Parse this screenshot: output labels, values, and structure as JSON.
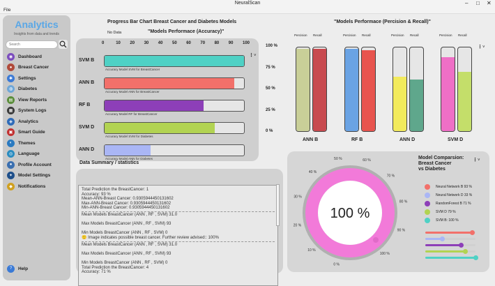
{
  "window": {
    "title": "NeuralScan",
    "menu_file": "File",
    "minimize": "–",
    "maximize": "□",
    "close": "✕"
  },
  "sidebar": {
    "title": "Analytics",
    "subtitle": "Insights from data and trends",
    "search_placeholder": "Search",
    "items": [
      {
        "label": "Dashboard",
        "color": "#7c4dbe",
        "glyph": "◉"
      },
      {
        "label": "Breast Cancer",
        "color": "#b04a3a",
        "glyph": "●"
      },
      {
        "label": "Settings",
        "color": "#3b7ad6",
        "glyph": "✱"
      },
      {
        "label": "Diabetes",
        "color": "#6fa7d8",
        "glyph": "◍"
      },
      {
        "label": "View Reports",
        "color": "#5a8d3a",
        "glyph": "▤"
      },
      {
        "label": "System Logs",
        "color": "#3a3a3a",
        "glyph": "▦"
      },
      {
        "label": "Analytics",
        "color": "#2e6bb8",
        "glyph": "◈"
      },
      {
        "label": "Smart Guide",
        "color": "#c23030",
        "glyph": "▣"
      },
      {
        "label": "Themes",
        "color": "#2a7ac0",
        "glyph": "◐"
      },
      {
        "label": "Language",
        "color": "#2a8cc0",
        "glyph": "◎"
      },
      {
        "label": "Profile Account",
        "color": "#3a6fb0",
        "glyph": "●"
      },
      {
        "label": "Model Settings",
        "color": "#1e4f8a",
        "glyph": "✦"
      },
      {
        "label": "Notifications",
        "color": "#d0a020",
        "glyph": "◆"
      }
    ],
    "help": "Help"
  },
  "accuracy_panel": {
    "title": "Progress Bar Chart Breast Cancer  and Diabetes Models",
    "no_data": "No Data",
    "subtitle": "\"Models Performace (Accuracy)\"",
    "menu": "⋮",
    "chevron": "˅",
    "ticks": [
      "0",
      "10",
      "20",
      "30",
      "40",
      "50",
      "60",
      "70",
      "80",
      "90",
      "100"
    ]
  },
  "recall_panel": {
    "title": "\"Models Performace (Percision & Recall)\"",
    "col_precision": "Percision",
    "col_recall": "Recall",
    "menu": "⋮",
    "chevron": "˅",
    "y_ticks": [
      "100 %",
      "75 %",
      "50 %",
      "25 %",
      "0 %"
    ]
  },
  "chart_data": [
    {
      "type": "bar",
      "orientation": "horizontal",
      "title": "\"Models Performace (Accuracy)\"",
      "xlim": [
        0,
        100
      ],
      "categories": [
        "SVM B",
        "ANN B",
        "RF B",
        "SVM D",
        "ANN D"
      ],
      "values": [
        100,
        93,
        71,
        79,
        33
      ],
      "colors": [
        "#4fd1c5",
        "#f2706a",
        "#8d3fb8",
        "#b2d352",
        "#aab6f5"
      ],
      "captions": [
        "Accuracy Model SVM for BreastCancer",
        "Accuracy Model ANN for BreastCancer",
        "Accuracy Model RF for BreastCancer",
        "Accuracy Model SVM for Diabetes",
        "Accuracy Model ANN for Diabetes"
      ]
    },
    {
      "type": "bar",
      "orientation": "vertical",
      "title": "\"Models Performace (Percision & Recall)\"",
      "ylim": [
        0,
        100
      ],
      "categories": [
        "ANN B",
        "RF B",
        "ANN D",
        "SVM D"
      ],
      "series": [
        {
          "name": "Percision",
          "values": [
            98,
            98,
            65,
            88
          ],
          "colors": [
            "#c9cf98",
            "#6aa3e4",
            "#f2ea5c",
            "#ef6fc6"
          ]
        },
        {
          "name": "Recall",
          "values": [
            98,
            97,
            62,
            71
          ],
          "colors": [
            "#c84a4f",
            "#e8544e",
            "#5fa78c",
            "#c4de6a"
          ]
        }
      ]
    },
    {
      "type": "pie",
      "title": "Model Comparsion: Breast Cancer vs Diabetes",
      "center_label": "100 %",
      "ring_ticks": [
        "0 %",
        "10 %",
        "20 %",
        "30 %",
        "40 %",
        "50 %",
        "60 %",
        "70 %",
        "80 %",
        "90 %",
        "100 %"
      ],
      "legend": [
        {
          "label": "Neural Network B 93 %",
          "color": "#f2706a",
          "value": 93
        },
        {
          "label": "Neural Network D 33 %",
          "color": "#aab6f5",
          "value": 33
        },
        {
          "label": "RandomForest B 71 %",
          "color": "#8d3fb8",
          "value": 71
        },
        {
          "label": "SVM D 79 %",
          "color": "#b2d352",
          "value": 79
        },
        {
          "label": "SVM B: 100 %",
          "color": "#4fd1c5",
          "value": 100
        }
      ]
    }
  ],
  "comparison_panel": {
    "title_line1": "Model Comparsion:",
    "title_line2": "Breast Cancer",
    "title_line3": "vs Diabetes",
    "menu": "⋮",
    "chevron": "˅",
    "ring_color": "#f27ad9"
  },
  "summary": {
    "title": "Data Summary / statistics",
    "lines": [
      "Total Prediction the BreastCancer: 1",
      "Accuracy: 93 %",
      "Mean-ANN-Breast Cancer: 0.9305944450131602",
      "Max-ANN-Breast Cancer: 0.9305944450131602",
      "Min-ANN-Breast Cancer: 0.9305944450131602",
      "---",
      "Mean Models BreastCancer (ANN , RF , SVM) 31.0",
      "",
      "Max Models BreastCancer (ANN , RF , SVM) 93",
      "",
      "Min Models BreastCancer (ANN , RF , SVM) 0",
      "🙂 Image indicates possible breast cancer. Further review advised:: 100%",
      "---",
      "Mean Models BreastCancer (ANN , RF , SVM) 31.0",
      "",
      "Max Models BreastCancer (ANN , RF , SVM) 93",
      "",
      "Min Models BreastCancer (ANN , RF , SVM) 0",
      "Total Prediction the BreastCancer: 4",
      "Accuracy: 71 %"
    ]
  }
}
